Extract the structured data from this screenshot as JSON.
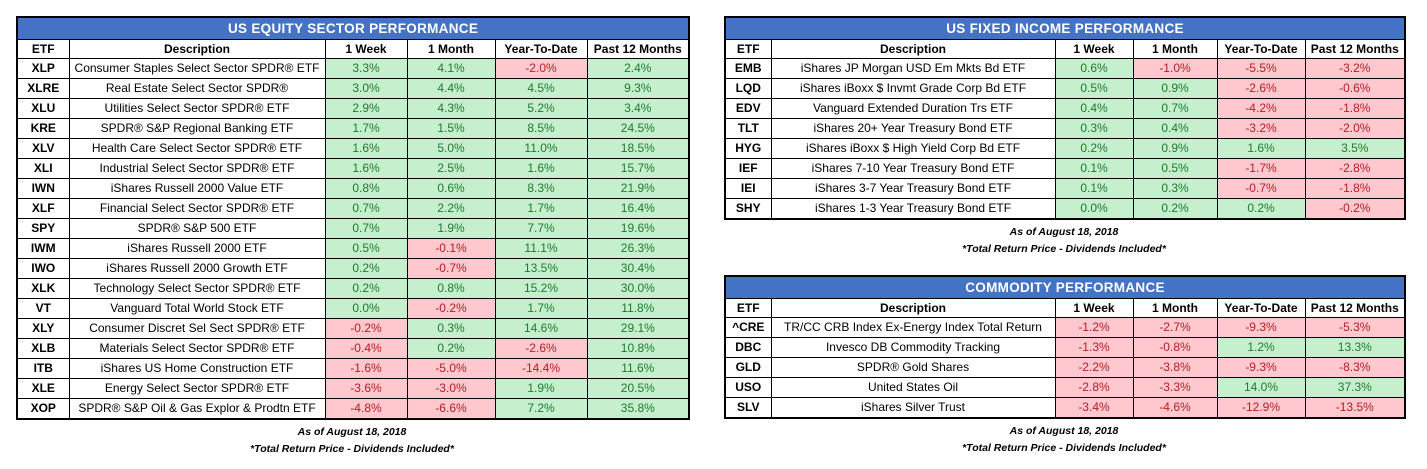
{
  "colors": {
    "title_bar_bg": "#4472C4",
    "title_bar_text": "#FFFFFF",
    "positive_bg": "#C6EFCE",
    "positive_text": "#1E7B2E",
    "negative_bg": "#FFC7CE",
    "negative_text": "#B42025",
    "border": "#000000"
  },
  "footer": {
    "as_of": "As of August 18, 2018",
    "note": "*Total Return Price - Dividends Included*"
  },
  "chart_data": [
    {
      "type": "table",
      "title": "US EQUITY SECTOR PERFORMANCE",
      "columns": [
        "ETF",
        "Description",
        "1 Week",
        "1 Month",
        "Year-To-Date",
        "Past 12 Months"
      ],
      "rows": [
        [
          "XLP",
          "Consumer Staples Select Sector SPDR® ETF",
          "3.3%",
          "4.1%",
          "-2.0%",
          "2.4%"
        ],
        [
          "XLRE",
          "Real Estate Select Sector SPDR®",
          "3.0%",
          "4.4%",
          "4.5%",
          "9.3%"
        ],
        [
          "XLU",
          "Utilities Select Sector SPDR® ETF",
          "2.9%",
          "4.3%",
          "5.2%",
          "3.4%"
        ],
        [
          "KRE",
          "SPDR® S&P Regional Banking ETF",
          "1.7%",
          "1.5%",
          "8.5%",
          "24.5%"
        ],
        [
          "XLV",
          "Health Care Select Sector SPDR® ETF",
          "1.6%",
          "5.0%",
          "11.0%",
          "18.5%"
        ],
        [
          "XLI",
          "Industrial Select Sector SPDR® ETF",
          "1.6%",
          "2.5%",
          "1.6%",
          "15.7%"
        ],
        [
          "IWN",
          "iShares Russell 2000 Value ETF",
          "0.8%",
          "0.6%",
          "8.3%",
          "21.9%"
        ],
        [
          "XLF",
          "Financial Select Sector SPDR® ETF",
          "0.7%",
          "2.2%",
          "1.7%",
          "16.4%"
        ],
        [
          "SPY",
          "SPDR® S&P 500 ETF",
          "0.7%",
          "1.9%",
          "7.7%",
          "19.6%"
        ],
        [
          "IWM",
          "iShares Russell 2000 ETF",
          "0.5%",
          "-0.1%",
          "11.1%",
          "26.3%"
        ],
        [
          "IWO",
          "iShares Russell 2000 Growth ETF",
          "0.2%",
          "-0.7%",
          "13.5%",
          "30.4%"
        ],
        [
          "XLK",
          "Technology Select Sector SPDR® ETF",
          "0.2%",
          "0.8%",
          "15.2%",
          "30.0%"
        ],
        [
          "VT",
          "Vanguard Total World Stock ETF",
          "0.0%",
          "-0.2%",
          "1.7%",
          "11.8%"
        ],
        [
          "XLY",
          "Consumer Discret Sel Sect SPDR® ETF",
          "-0.2%",
          "0.3%",
          "14.6%",
          "29.1%"
        ],
        [
          "XLB",
          "Materials Select Sector SPDR® ETF",
          "-0.4%",
          "0.2%",
          "-2.6%",
          "10.8%"
        ],
        [
          "ITB",
          "iShares US Home Construction ETF",
          "-1.6%",
          "-5.0%",
          "-14.4%",
          "11.6%"
        ],
        [
          "XLE",
          "Energy Select Sector SPDR® ETF",
          "-3.6%",
          "-3.0%",
          "1.9%",
          "20.5%"
        ],
        [
          "XOP",
          "SPDR® S&P Oil & Gas Explor & Prodtn ETF",
          "-4.8%",
          "-6.6%",
          "7.2%",
          "35.8%"
        ]
      ]
    },
    {
      "type": "table",
      "title": "US FIXED INCOME PERFORMANCE",
      "columns": [
        "ETF",
        "Description",
        "1 Week",
        "1 Month",
        "Year-To-Date",
        "Past 12 Months"
      ],
      "rows": [
        [
          "EMB",
          "iShares JP Morgan USD Em Mkts Bd ETF",
          "0.6%",
          "-1.0%",
          "-5.5%",
          "-3.2%"
        ],
        [
          "LQD",
          "iShares iBoxx $ Invmt Grade Corp Bd ETF",
          "0.5%",
          "0.9%",
          "-2.6%",
          "-0.6%"
        ],
        [
          "EDV",
          "Vanguard Extended Duration Trs ETF",
          "0.4%",
          "0.7%",
          "-4.2%",
          "-1.8%"
        ],
        [
          "TLT",
          "iShares 20+ Year Treasury Bond ETF",
          "0.3%",
          "0.4%",
          "-3.2%",
          "-2.0%"
        ],
        [
          "HYG",
          "iShares iBoxx $ High Yield Corp Bd ETF",
          "0.2%",
          "0.9%",
          "1.6%",
          "3.5%"
        ],
        [
          "IEF",
          "iShares 7-10 Year Treasury Bond ETF",
          "0.1%",
          "0.5%",
          "-1.7%",
          "-2.8%"
        ],
        [
          "IEI",
          "iShares 3-7 Year Treasury Bond ETF",
          "0.1%",
          "0.3%",
          "-0.7%",
          "-1.8%"
        ],
        [
          "SHY",
          "iShares 1-3 Year Treasury Bond ETF",
          "0.0%",
          "0.2%",
          "0.2%",
          "-0.2%"
        ]
      ]
    },
    {
      "type": "table",
      "title": "COMMODITY PERFORMANCE",
      "columns": [
        "ETF",
        "Description",
        "1 Week",
        "1 Month",
        "Year-To-Date",
        "Past 12 Months"
      ],
      "rows": [
        [
          "^CRE",
          "TR/CC CRB Index Ex-Energy Index Total Return",
          "-1.2%",
          "-2.7%",
          "-9.3%",
          "-5.3%"
        ],
        [
          "DBC",
          "Invesco DB Commodity Tracking",
          "-1.3%",
          "-0.8%",
          "1.2%",
          "13.3%"
        ],
        [
          "GLD",
          "SPDR® Gold Shares",
          "-2.2%",
          "-3.8%",
          "-9.3%",
          "-8.3%"
        ],
        [
          "USO",
          "United States Oil",
          "-2.8%",
          "-3.3%",
          "14.0%",
          "37.3%"
        ],
        [
          "SLV",
          "iShares Silver Trust",
          "-3.4%",
          "-4.6%",
          "-12.9%",
          "-13.5%"
        ]
      ]
    }
  ]
}
